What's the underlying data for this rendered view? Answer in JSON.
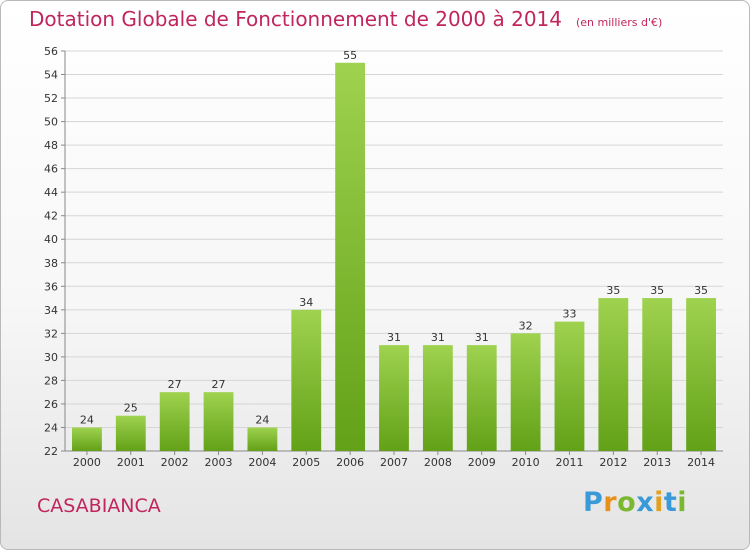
{
  "header": {
    "title": "Dotation Globale de Fonctionnement de 2000 à 2014",
    "unit": "(en milliers d'€)"
  },
  "footer": {
    "place": "CASABIANCA",
    "brand_letters": [
      "P",
      "r",
      "o",
      "x",
      "i",
      "t",
      "i"
    ],
    "brand_colors": [
      "#3a9ad9",
      "#e8901a",
      "#7cb82f",
      "#3a9ad9",
      "#e0a020",
      "#3a9ad9",
      "#7cb82f"
    ]
  },
  "colors": {
    "title": "#c0265d",
    "bar_light": "#9fd24f",
    "bar_dark": "#62a118",
    "grid": "#d6d6d6"
  },
  "chart_data": {
    "type": "bar",
    "title": "Dotation Globale de Fonctionnement de 2000 à 2014",
    "subtitle": "(en milliers d'€)",
    "xlabel": "",
    "ylabel": "",
    "categories": [
      "2000",
      "2001",
      "2002",
      "2003",
      "2004",
      "2005",
      "2006",
      "2007",
      "2008",
      "2009",
      "2010",
      "2011",
      "2012",
      "2013",
      "2014"
    ],
    "values": [
      24,
      25,
      27,
      27,
      24,
      34,
      55,
      31,
      31,
      31,
      32,
      33,
      35,
      35,
      35
    ],
    "ylim": [
      22,
      56
    ],
    "yticks": [
      22,
      24,
      26,
      28,
      30,
      32,
      34,
      36,
      38,
      40,
      42,
      44,
      46,
      48,
      50,
      52,
      54,
      56
    ],
    "grid": true,
    "legend": "none"
  }
}
